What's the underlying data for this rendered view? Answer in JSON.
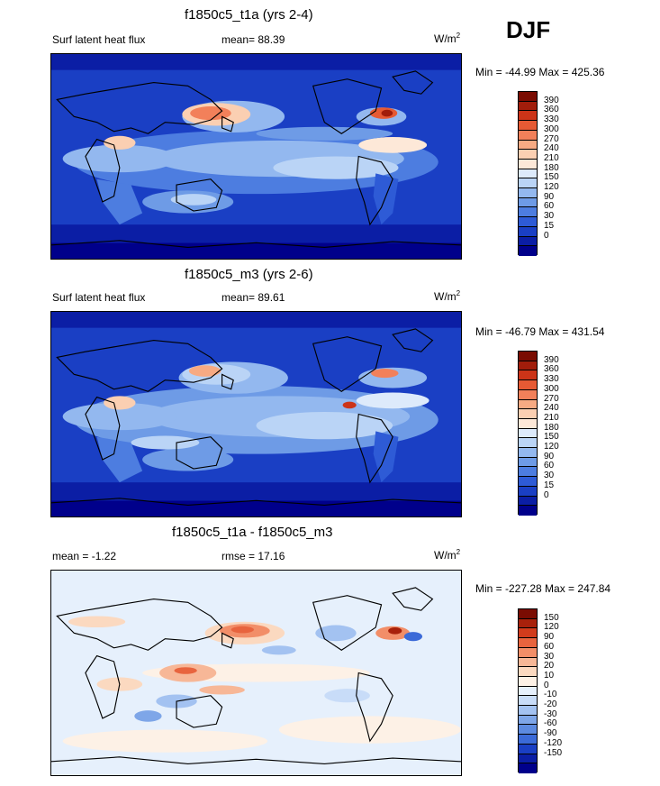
{
  "season": "DJF",
  "palette_abs": [
    "#00008b",
    "#0b1ea5",
    "#1a3fc4",
    "#2e5bd6",
    "#4d7de0",
    "#6e9be6",
    "#93b8ef",
    "#bad4f6",
    "#ddeafb",
    "#fde8d8",
    "#fbcfb2",
    "#f7aa83",
    "#f2805a",
    "#e65a34",
    "#cc3418",
    "#a11d0b",
    "#7a0c02"
  ],
  "palette_diff": [
    "#00008b",
    "#0b1ea5",
    "#1a3fc4",
    "#3b6ad8",
    "#5c8ae0",
    "#7ea6e8",
    "#a3c2f1",
    "#c8dcf8",
    "#e6f0fc",
    "#fdf1e6",
    "#fbd9c0",
    "#f7b797",
    "#f28e68",
    "#e8643e",
    "#d13c1c",
    "#a8210b",
    "#7a0c02"
  ],
  "panels": [
    {
      "title": "f1850c5_t1a (yrs 2-4)",
      "left_label": "Surf latent heat flux",
      "mean_text": "mean=  88.39",
      "units_main": "W/m",
      "units_exp": "2",
      "minmax": "Min = -44.99 Max = 425.36",
      "kind": "abs",
      "levels": [
        "390",
        "360",
        "330",
        "300",
        "270",
        "240",
        "210",
        "180",
        "150",
        "120",
        "90",
        "60",
        "30",
        "15",
        "0"
      ]
    },
    {
      "title": "f1850c5_m3 (yrs 2-6)",
      "left_label": "Surf latent heat flux",
      "mean_text": "mean=  89.61",
      "units_main": "W/m",
      "units_exp": "2",
      "minmax": "Min = -46.79 Max = 431.54",
      "kind": "abs",
      "levels": [
        "390",
        "360",
        "330",
        "300",
        "270",
        "240",
        "210",
        "180",
        "150",
        "120",
        "90",
        "60",
        "30",
        "15",
        "0"
      ]
    },
    {
      "title": "f1850c5_t1a - f1850c5_m3",
      "left_label": "mean =  -1.22",
      "mean_text": "rmse =  17.16",
      "units_main": "W/m",
      "units_exp": "2",
      "minmax": "Min = -227.28 Max = 247.84",
      "kind": "diff",
      "levels": [
        "150",
        "120",
        "90",
        "60",
        "30",
        "20",
        "10",
        "0",
        "-10",
        "-20",
        "-30",
        "-60",
        "-90",
        "-120",
        "-150"
      ]
    }
  ],
  "chart_data": [
    {
      "type": "heatmap",
      "title": "f1850c5_t1a (yrs 2-4)",
      "variable": "Surf latent heat flux",
      "units": "W/m2",
      "mean": 88.39,
      "min": -44.99,
      "max": 425.36,
      "contour_levels": [
        0,
        15,
        30,
        60,
        90,
        120,
        150,
        180,
        210,
        240,
        270,
        300,
        330,
        360,
        390
      ]
    },
    {
      "type": "heatmap",
      "title": "f1850c5_m3 (yrs 2-6)",
      "variable": "Surf latent heat flux",
      "units": "W/m2",
      "mean": 89.61,
      "min": -46.79,
      "max": 431.54,
      "contour_levels": [
        0,
        15,
        30,
        60,
        90,
        120,
        150,
        180,
        210,
        240,
        270,
        300,
        330,
        360,
        390
      ]
    },
    {
      "type": "heatmap",
      "title": "f1850c5_t1a - f1850c5_m3",
      "units": "W/m2",
      "mean": -1.22,
      "rmse": 17.16,
      "min": -227.28,
      "max": 247.84,
      "contour_levels": [
        -150,
        -120,
        -90,
        -60,
        -30,
        -20,
        -10,
        0,
        10,
        20,
        30,
        60,
        90,
        120,
        150
      ]
    }
  ]
}
